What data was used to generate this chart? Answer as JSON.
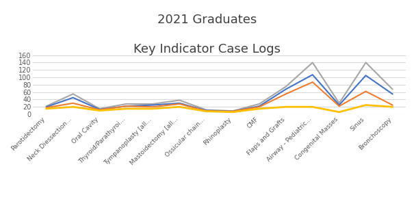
{
  "title_line1": "2021 Graduates",
  "title_line2": "Key Indicator Case Logs",
  "categories": [
    "Parotidectomy",
    "Neck Diessection...",
    "Oral Cavity",
    "Thyroid/Parathyroi...",
    "Tympanoplasty [all...",
    "Mastoidectomy [all...",
    "Ossicular chain...",
    "Rhinoplasty",
    "CMF",
    "Flaps and Grafts",
    "Airway - Pediatric...",
    "Congenital Masses",
    "Sinus",
    "Bronchoscopy"
  ],
  "series_gray": [
    22,
    55,
    15,
    28,
    28,
    38,
    12,
    9,
    28,
    75,
    140,
    30,
    140,
    68
  ],
  "series_blue": [
    20,
    45,
    13,
    22,
    25,
    30,
    10,
    8,
    22,
    68,
    107,
    25,
    105,
    55
  ],
  "series_orange": [
    18,
    30,
    12,
    22,
    20,
    28,
    9,
    8,
    20,
    55,
    87,
    22,
    62,
    25
  ],
  "required_minimum": [
    15,
    20,
    10,
    15,
    15,
    20,
    8,
    6,
    15,
    20,
    20,
    6,
    25,
    20
  ],
  "color_gray": "#a6a6a6",
  "color_blue": "#4472c4",
  "color_orange": "#ed7d31",
  "color_yellow": "#ffc000",
  "ylim": [
    0,
    160
  ],
  "yticks": [
    0,
    20,
    40,
    60,
    80,
    100,
    120,
    140,
    160
  ],
  "background_color": "#ffffff",
  "grid_color": "#d9d9d9",
  "title_fontsize": 13,
  "tick_fontsize": 7,
  "xtick_fontsize": 6.5,
  "linewidth": 1.5,
  "yellow_linewidth": 2.0
}
